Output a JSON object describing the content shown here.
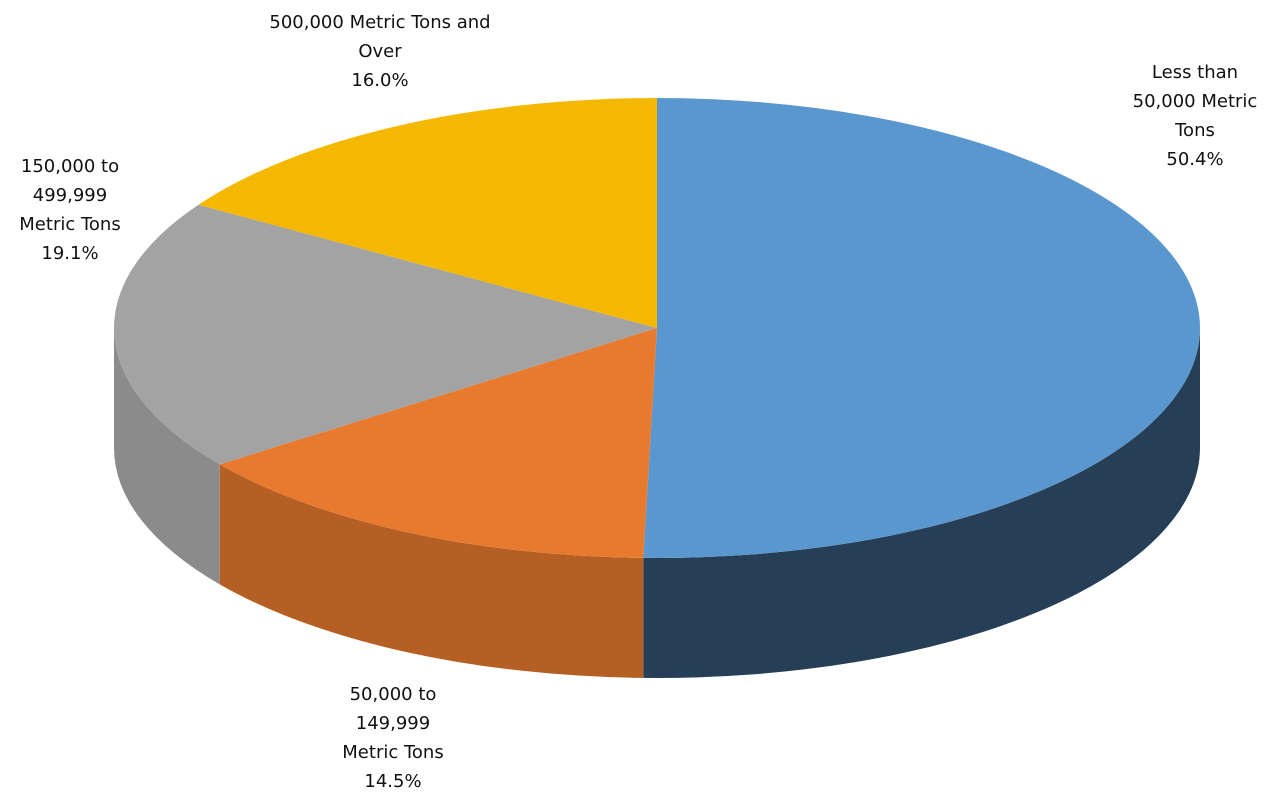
{
  "chart_data": {
    "type": "pie3d",
    "categories": [
      "Less than 50,000 Metric Tons",
      "50,000 to 149,999 Metric Tons",
      "150,000 to 499,999 Metric Tons",
      "500,000 Metric Tons and Over"
    ],
    "values": [
      50.4,
      14.5,
      19.1,
      16.0
    ],
    "value_labels": [
      "50.4%",
      "14.5%",
      "19.1%",
      "16.0%"
    ],
    "colors": [
      "#5b97cf",
      "#e87a30",
      "#a3a3a3",
      "#f5b800"
    ]
  }
}
